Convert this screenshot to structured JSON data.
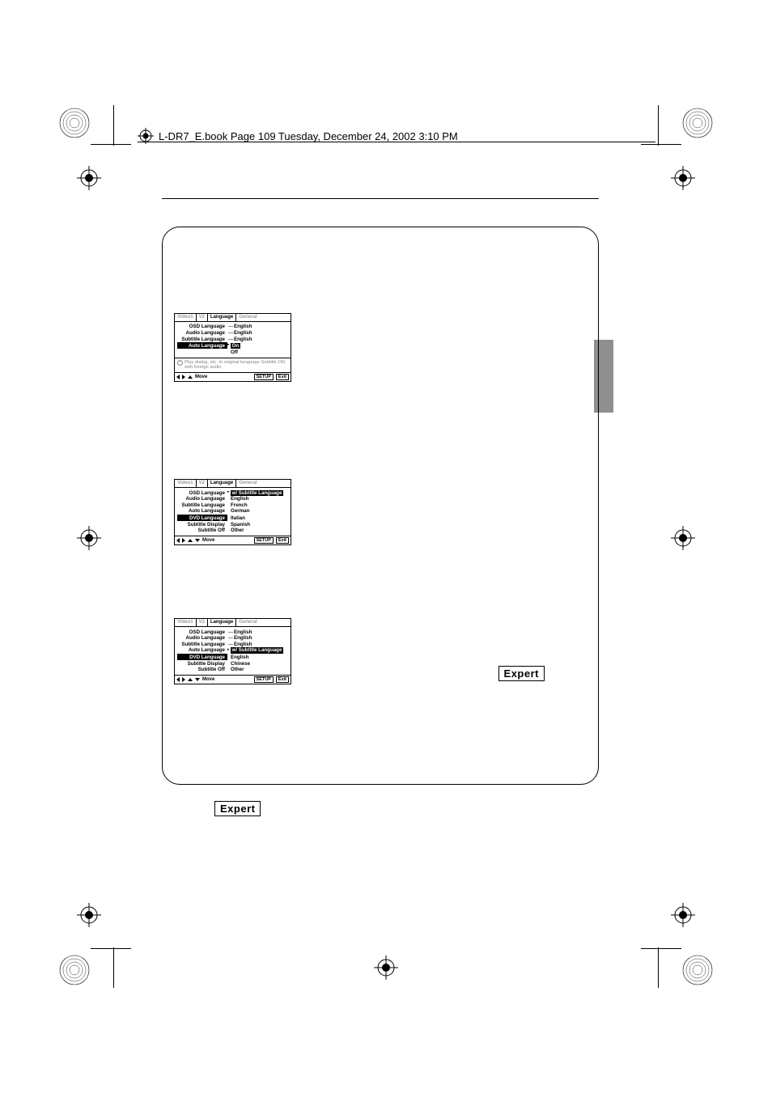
{
  "header": {
    "book_title": "L-DR7_E.book  Page 109  Tuesday, December 24, 2002  3:10 PM"
  },
  "expert_label": "Expert",
  "osd_common": {
    "tabs": [
      "Video1",
      "V2",
      "Language",
      "General"
    ],
    "active_tab_index": 2,
    "move_label": "Move",
    "setup_btn": "SETUP",
    "exit_btn": "Exit"
  },
  "osd1": {
    "rows": [
      {
        "label": "OSD Language",
        "sep": "—",
        "value": "English"
      },
      {
        "label": "Audio Language",
        "sep": "—",
        "value": "English"
      },
      {
        "label": "Subtitle Language",
        "sep": "—",
        "value": "English"
      },
      {
        "label": "Auto Language",
        "highlight_label": true,
        "arrow": true,
        "value": "On",
        "highlight_value": true
      },
      {
        "label": "",
        "value": "Off"
      }
    ],
    "note": "Play dialog, etc. in original language\nSubtitle ON with foreign audio",
    "foot_arrows": [
      "l",
      "r",
      "u"
    ]
  },
  "osd2": {
    "rows": [
      {
        "label": "OSD Language",
        "arrow": true,
        "value": "w/ Subtitle Language",
        "highlight_value": true
      },
      {
        "label": "Audio Language",
        "value": "English"
      },
      {
        "label": "Subtitle Language",
        "value": "French"
      },
      {
        "label": "Auto Language",
        "value": "German"
      },
      {
        "label": "DVD Language",
        "highlight_label": true,
        "value": "Italian"
      },
      {
        "label": "Subtitle Display",
        "value": "Spanish"
      },
      {
        "label": "Subtitle Off",
        "value": "Other"
      }
    ],
    "foot_arrows": [
      "l",
      "r",
      "u",
      "d"
    ]
  },
  "osd3": {
    "rows": [
      {
        "label": "OSD Language",
        "sep": "—",
        "value": "English"
      },
      {
        "label": "Audio Language",
        "sep": "—",
        "value": "English"
      },
      {
        "label": "Subtitle Language",
        "sep": "—",
        "value": "English"
      },
      {
        "label": "Auto Language",
        "arrow": true,
        "value": "w/ Subtitle Language",
        "highlight_value": true
      },
      {
        "label": "DVD Language",
        "highlight_label": true,
        "value": "English"
      },
      {
        "label": "Subtitle Display",
        "value": "Chinese"
      },
      {
        "label": "Subtitle Off",
        "value": "Other"
      }
    ],
    "foot_arrows": [
      "l",
      "r",
      "u",
      "d"
    ]
  },
  "colors": {
    "page_bg": "#ffffff",
    "ink": "#000000",
    "muted": "#9a9a9a"
  }
}
